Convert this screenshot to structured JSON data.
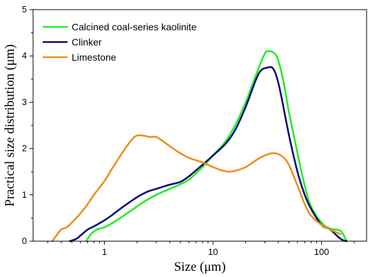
{
  "chart_data": {
    "type": "line",
    "xlabel": "Size (μm)",
    "ylabel": "Practical size distribution (μm)",
    "xscale": "log",
    "xlim": [
      0.22,
      260
    ],
    "ylim": [
      0,
      5
    ],
    "xticks": [
      1,
      10,
      100
    ],
    "xtick_labels": [
      "1",
      "10",
      "100"
    ],
    "yticks": [
      0,
      1,
      2,
      3,
      4,
      5
    ],
    "ytick_labels": [
      "0",
      "1",
      "2",
      "3",
      "4",
      "5"
    ],
    "legend_position": "top-left",
    "series": [
      {
        "name": "Calcined coal-series kaolinite",
        "color": "#22ee22",
        "x": [
          0.68,
          0.75,
          0.85,
          1.0,
          1.2,
          1.5,
          2.0,
          2.5,
          3.0,
          4.0,
          5.0,
          6.0,
          8.0,
          10.0,
          13.0,
          16.0,
          20.0,
          25.0,
          30.0,
          33.0,
          37.0,
          40.0,
          45.0,
          50.0,
          60.0,
          70.0,
          80.0,
          100.0,
          120.0,
          150.0,
          170.0
        ],
        "y": [
          0.0,
          0.15,
          0.25,
          0.3,
          0.4,
          0.55,
          0.75,
          0.9,
          1.0,
          1.13,
          1.23,
          1.33,
          1.6,
          1.85,
          2.15,
          2.5,
          3.0,
          3.6,
          4.05,
          4.1,
          4.05,
          3.9,
          3.4,
          2.8,
          1.9,
          1.2,
          0.75,
          0.4,
          0.27,
          0.22,
          0.0
        ]
      },
      {
        "name": "Clinker",
        "color": "#0a0a7a",
        "x": [
          0.48,
          0.55,
          0.6,
          0.7,
          0.8,
          1.0,
          1.2,
          1.5,
          2.0,
          2.5,
          3.0,
          4.0,
          5.0,
          6.0,
          8.0,
          10.0,
          13.0,
          16.0,
          20.0,
          25.0,
          28.0,
          32.0,
          35.0,
          38.0,
          42.0,
          50.0,
          60.0,
          70.0,
          80.0,
          100.0,
          120.0,
          150.0,
          170.0
        ],
        "y": [
          0.0,
          0.05,
          0.12,
          0.25,
          0.32,
          0.45,
          0.58,
          0.75,
          0.95,
          1.07,
          1.13,
          1.22,
          1.28,
          1.4,
          1.65,
          1.85,
          2.1,
          2.4,
          2.9,
          3.5,
          3.7,
          3.75,
          3.75,
          3.6,
          3.2,
          2.3,
          1.5,
          1.0,
          0.7,
          0.35,
          0.25,
          0.05,
          0.0
        ]
      },
      {
        "name": "Limestone",
        "color": "#f08c1e",
        "x": [
          0.33,
          0.36,
          0.4,
          0.45,
          0.5,
          0.6,
          0.7,
          0.8,
          1.0,
          1.2,
          1.5,
          1.8,
          2.0,
          2.3,
          2.6,
          3.0,
          3.5,
          4.0,
          5.0,
          6.0,
          8.0,
          10.0,
          12.0,
          14.0,
          16.0,
          20.0,
          25.0,
          30.0,
          35.0,
          40.0,
          45.0,
          50.0,
          60.0,
          70.0,
          80.0,
          100.0,
          120.0,
          150.0
        ],
        "y": [
          0.0,
          0.12,
          0.25,
          0.3,
          0.4,
          0.6,
          0.8,
          1.0,
          1.3,
          1.6,
          1.95,
          2.2,
          2.28,
          2.28,
          2.25,
          2.25,
          2.15,
          2.05,
          1.9,
          1.8,
          1.7,
          1.6,
          1.53,
          1.5,
          1.52,
          1.6,
          1.75,
          1.85,
          1.9,
          1.88,
          1.8,
          1.65,
          1.2,
          0.8,
          0.55,
          0.35,
          0.25,
          0.15
        ]
      }
    ]
  }
}
